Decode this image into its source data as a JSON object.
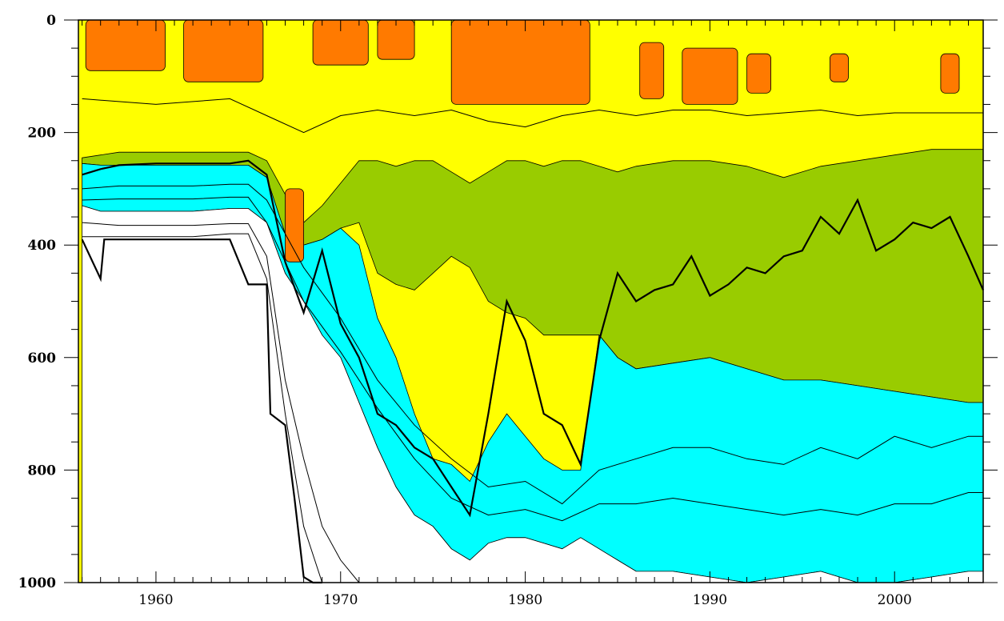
{
  "chart_data": {
    "type": "contour",
    "title": "",
    "xlabel": "",
    "ylabel": "",
    "xlim": [
      1955.8,
      2004.8
    ],
    "ylim": [
      1000,
      0
    ],
    "x_ticks": [
      1960,
      1970,
      1980,
      1990,
      2000
    ],
    "x_tick_labels": [
      "1960",
      "1970",
      "1980",
      "1990",
      "2000"
    ],
    "y_ticks": [
      0,
      200,
      400,
      600,
      800,
      1000
    ],
    "y_tick_labels": [
      "0",
      "200",
      "400",
      "600",
      "800",
      "1000"
    ],
    "grid": false,
    "legend": "none",
    "colors": {
      "orange": "#ff7a00",
      "yellow": "#ffff00",
      "green": "#99cc00",
      "cyan": "#00ffff",
      "white": "#ffffff",
      "line": "#000000"
    },
    "bands": [
      {
        "color": "#99cc00",
        "x": [
          1956,
          1957,
          1958,
          1960,
          1962,
          1964,
          1965,
          1966,
          1967,
          1968,
          1969,
          1970,
          1971,
          1972,
          1973,
          1974,
          1975,
          1976,
          1977,
          1978,
          1979,
          1980,
          1981,
          1982,
          1983,
          1984,
          1985,
          1986,
          1988,
          1990,
          1992,
          1994,
          1996,
          1998,
          2000,
          2002,
          2004,
          2004.8
        ],
        "top": [
          245,
          240,
          235,
          235,
          235,
          235,
          235,
          250,
          310,
          360,
          330,
          290,
          250,
          250,
          260,
          250,
          250,
          270,
          290,
          270,
          250,
          250,
          260,
          250,
          250,
          260,
          270,
          260,
          250,
          250,
          260,
          280,
          260,
          250,
          240,
          230,
          230,
          230
        ],
        "bottom": [
          255,
          258,
          258,
          258,
          258,
          258,
          258,
          280,
          380,
          400,
          390,
          370,
          360,
          450,
          470,
          480,
          450,
          420,
          440,
          500,
          520,
          530,
          560,
          560,
          560,
          560,
          600,
          620,
          610,
          600,
          620,
          640,
          640,
          650,
          660,
          670,
          680,
          680
        ]
      },
      {
        "color": "#00ffff",
        "x": [
          1956,
          1957,
          1958,
          1960,
          1962,
          1964,
          1965,
          1966,
          1967,
          1968,
          1969,
          1970,
          1971,
          1972,
          1973,
          1974,
          1975,
          1976,
          1977,
          1978,
          1979,
          1980,
          1981,
          1982,
          1983,
          1984,
          1985,
          1986,
          1988,
          1990,
          1992,
          1994,
          1996,
          1998,
          2000,
          2002,
          2004,
          2004.8
        ],
        "top": [
          255,
          258,
          258,
          258,
          258,
          258,
          258,
          280,
          380,
          400,
          390,
          370,
          400,
          530,
          600,
          700,
          780,
          790,
          820,
          750,
          700,
          740,
          780,
          800,
          800,
          560,
          600,
          620,
          610,
          600,
          620,
          640,
          640,
          650,
          660,
          670,
          680,
          680
        ],
        "bottom": [
          330,
          340,
          340,
          340,
          340,
          335,
          335,
          360,
          450,
          500,
          560,
          600,
          680,
          760,
          830,
          880,
          900,
          940,
          960,
          930,
          920,
          920,
          930,
          940,
          920,
          940,
          960,
          980,
          980,
          990,
          1000,
          990,
          980,
          1000,
          1000,
          990,
          980,
          980
        ]
      }
    ],
    "orange_patches": [
      {
        "x": [
          1956.2,
          1960.5
        ],
        "depth": [
          0,
          90
        ]
      },
      {
        "x": [
          1961.5,
          1965.8
        ],
        "depth": [
          0,
          110
        ]
      },
      {
        "x": [
          1967,
          1968
        ],
        "depth": [
          300,
          430
        ]
      },
      {
        "x": [
          1968.5,
          1971.5
        ],
        "depth": [
          0,
          80
        ]
      },
      {
        "x": [
          1972,
          1974
        ],
        "depth": [
          0,
          70
        ]
      },
      {
        "x": [
          1976,
          1983.5
        ],
        "depth": [
          0,
          150
        ]
      },
      {
        "x": [
          1986.2,
          1987.5
        ],
        "depth": [
          40,
          140
        ]
      },
      {
        "x": [
          1988.5,
          1991.5
        ],
        "depth": [
          50,
          150
        ]
      },
      {
        "x": [
          1992,
          1993.3
        ],
        "depth": [
          60,
          130
        ]
      },
      {
        "x": [
          1996.5,
          1997.5
        ],
        "depth": [
          60,
          110
        ]
      },
      {
        "x": [
          2002.5,
          2003.5
        ],
        "depth": [
          60,
          130
        ]
      }
    ],
    "contour_lines": [
      {
        "name": "thick",
        "x": [
          1956,
          1957,
          1958,
          1960,
          1962,
          1964,
          1965,
          1966,
          1967,
          1968,
          1969,
          1970,
          1971,
          1972,
          1973,
          1974,
          1975,
          1976,
          1977,
          1978,
          1979,
          1980,
          1981,
          1982,
          1983,
          1984,
          1985,
          1986,
          1987,
          1988,
          1989,
          1990,
          1991,
          1992,
          1993,
          1994,
          1995,
          1996,
          1997,
          1998,
          1999,
          2000,
          2001,
          2002,
          2003,
          2004,
          2004.8
        ],
        "y": [
          275,
          265,
          258,
          255,
          255,
          255,
          250,
          275,
          430,
          520,
          410,
          540,
          600,
          700,
          720,
          760,
          780,
          830,
          880,
          700,
          500,
          570,
          700,
          720,
          790,
          570,
          450,
          500,
          480,
          470,
          420,
          490,
          470,
          440,
          450,
          420,
          410,
          350,
          380,
          320,
          410,
          390,
          360,
          370,
          350,
          420,
          480
        ]
      },
      {
        "name": "thin-1",
        "x": [
          1956,
          1958,
          1960,
          1962,
          1964,
          1965,
          1966,
          1968,
          1970,
          1972,
          1974,
          1976,
          1978,
          1980,
          1982,
          1984,
          1986,
          1988,
          1990,
          1992,
          1994,
          1996,
          1998,
          2000,
          2002,
          2004,
          2004.8
        ],
        "y": [
          300,
          295,
          295,
          295,
          292,
          292,
          320,
          440,
          530,
          640,
          720,
          780,
          830,
          820,
          860,
          800,
          780,
          760,
          760,
          780,
          790,
          760,
          780,
          740,
          760,
          740,
          740
        ]
      },
      {
        "name": "thin-2",
        "x": [
          1956,
          1958,
          1960,
          1962,
          1964,
          1965,
          1966,
          1968,
          1970,
          1972,
          1974,
          1976,
          1978,
          1980,
          1982,
          1984,
          1986,
          1988,
          1990,
          1992,
          1994,
          1996,
          1998,
          2000,
          2002,
          2004,
          2004.8
        ],
        "y": [
          320,
          318,
          318,
          318,
          315,
          315,
          360,
          500,
          590,
          690,
          780,
          850,
          880,
          870,
          890,
          860,
          860,
          850,
          860,
          870,
          880,
          870,
          880,
          860,
          860,
          840,
          840
        ]
      },
      {
        "name": "thin-3",
        "x": [
          1956,
          1958,
          1960,
          1962,
          1964,
          1965,
          1966,
          1967,
          1968,
          1969,
          1970,
          1971,
          1972
        ],
        "y": [
          360,
          365,
          365,
          365,
          362,
          362,
          420,
          640,
          780,
          900,
          960,
          1000,
          1000
        ]
      },
      {
        "name": "thin-4",
        "x": [
          1956,
          1958,
          1960,
          1962,
          1964,
          1965,
          1966,
          1967,
          1968,
          1969
        ],
        "y": [
          385,
          385,
          385,
          385,
          380,
          380,
          460,
          700,
          900,
          1000
        ]
      },
      {
        "name": "thick-bottom",
        "x": [
          1956,
          1957,
          1957.2,
          1960,
          1962,
          1964,
          1965,
          1966,
          1966.2,
          1967,
          1967.5,
          1968,
          1968.5,
          1969
        ],
        "y": [
          390,
          460,
          390,
          390,
          390,
          390,
          470,
          470,
          700,
          720,
          850,
          990,
          1000,
          1000
        ]
      },
      {
        "name": "upper-1",
        "x": [
          1956,
          1960,
          1964,
          1966,
          1968,
          1970,
          1972,
          1974,
          1976,
          1978,
          1980,
          1982,
          1984,
          1986,
          1988,
          1990,
          1992,
          1994,
          1996,
          1998,
          2000,
          2002,
          2004,
          2004.8
        ],
        "y": [
          140,
          150,
          140,
          170,
          200,
          170,
          160,
          170,
          160,
          180,
          190,
          170,
          160,
          170,
          160,
          160,
          170,
          165,
          160,
          170,
          165,
          165,
          165,
          165
        ]
      }
    ]
  }
}
